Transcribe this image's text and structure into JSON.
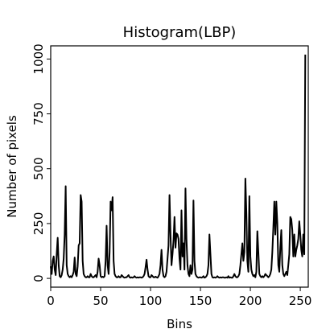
{
  "chart_data": {
    "type": "line",
    "title": "Histogram(LBP)",
    "xlabel": "Bins",
    "ylabel": "Number of pixels",
    "xlim": [
      0,
      258
    ],
    "ylim": [
      -40,
      1060
    ],
    "xticks": [
      0,
      50,
      100,
      150,
      200,
      250
    ],
    "yticks": [
      0,
      250,
      500,
      750,
      1000
    ],
    "xtick_labels": [
      "0",
      "50",
      "100",
      "150",
      "200",
      "250"
    ],
    "ytick_labels": [
      "0",
      "250",
      "500",
      "750",
      "1000"
    ],
    "line_color": "#000000",
    "grid": false,
    "legend": "none",
    "series": [
      {
        "points": [
          [
            0,
            55
          ],
          [
            1,
            20
          ],
          [
            2,
            80
          ],
          [
            3,
            100
          ],
          [
            4,
            40
          ],
          [
            5,
            15
          ],
          [
            6,
            110
          ],
          [
            7,
            185
          ],
          [
            8,
            60
          ],
          [
            9,
            10
          ],
          [
            10,
            5
          ],
          [
            11,
            15
          ],
          [
            12,
            40
          ],
          [
            13,
            90
          ],
          [
            14,
            200
          ],
          [
            15,
            420
          ],
          [
            16,
            60
          ],
          [
            17,
            20
          ],
          [
            18,
            10
          ],
          [
            19,
            5
          ],
          [
            20,
            10
          ],
          [
            21,
            5
          ],
          [
            22,
            15
          ],
          [
            23,
            30
          ],
          [
            24,
            95
          ],
          [
            25,
            20
          ],
          [
            26,
            10
          ],
          [
            27,
            55
          ],
          [
            28,
            150
          ],
          [
            29,
            160
          ],
          [
            30,
            380
          ],
          [
            31,
            350
          ],
          [
            32,
            80
          ],
          [
            33,
            20
          ],
          [
            34,
            10
          ],
          [
            35,
            5
          ],
          [
            36,
            5
          ],
          [
            37,
            10
          ],
          [
            38,
            5
          ],
          [
            39,
            5
          ],
          [
            40,
            20
          ],
          [
            41,
            10
          ],
          [
            42,
            5
          ],
          [
            43,
            5
          ],
          [
            44,
            10
          ],
          [
            45,
            15
          ],
          [
            46,
            5
          ],
          [
            47,
            30
          ],
          [
            48,
            90
          ],
          [
            49,
            60
          ],
          [
            50,
            10
          ],
          [
            51,
            5
          ],
          [
            52,
            8
          ],
          [
            53,
            5
          ],
          [
            54,
            10
          ],
          [
            55,
            80
          ],
          [
            56,
            240
          ],
          [
            57,
            60
          ],
          [
            58,
            20
          ],
          [
            59,
            120
          ],
          [
            60,
            350
          ],
          [
            61,
            310
          ],
          [
            62,
            370
          ],
          [
            63,
            80
          ],
          [
            64,
            20
          ],
          [
            65,
            10
          ],
          [
            66,
            5
          ],
          [
            67,
            5
          ],
          [
            68,
            10
          ],
          [
            69,
            5
          ],
          [
            70,
            5
          ],
          [
            71,
            15
          ],
          [
            72,
            10
          ],
          [
            73,
            5
          ],
          [
            74,
            3
          ],
          [
            75,
            5
          ],
          [
            76,
            5
          ],
          [
            77,
            10
          ],
          [
            78,
            15
          ],
          [
            79,
            5
          ],
          [
            80,
            3
          ],
          [
            81,
            5
          ],
          [
            82,
            3
          ],
          [
            83,
            5
          ],
          [
            84,
            10
          ],
          [
            85,
            5
          ],
          [
            86,
            3
          ],
          [
            87,
            5
          ],
          [
            88,
            3
          ],
          [
            89,
            5
          ],
          [
            90,
            5
          ],
          [
            91,
            3
          ],
          [
            92,
            5
          ],
          [
            93,
            10
          ],
          [
            94,
            20
          ],
          [
            95,
            50
          ],
          [
            96,
            85
          ],
          [
            97,
            40
          ],
          [
            98,
            10
          ],
          [
            99,
            5
          ],
          [
            100,
            5
          ],
          [
            101,
            15
          ],
          [
            102,
            10
          ],
          [
            103,
            5
          ],
          [
            104,
            5
          ],
          [
            105,
            8
          ],
          [
            106,
            5
          ],
          [
            107,
            3
          ],
          [
            108,
            10
          ],
          [
            109,
            20
          ],
          [
            110,
            60
          ],
          [
            111,
            130
          ],
          [
            112,
            40
          ],
          [
            113,
            10
          ],
          [
            114,
            5
          ],
          [
            115,
            10
          ],
          [
            116,
            30
          ],
          [
            117,
            90
          ],
          [
            118,
            150
          ],
          [
            119,
            380
          ],
          [
            120,
            200
          ],
          [
            121,
            60
          ],
          [
            122,
            110
          ],
          [
            123,
            170
          ],
          [
            124,
            280
          ],
          [
            125,
            140
          ],
          [
            126,
            205
          ],
          [
            127,
            200
          ],
          [
            128,
            180
          ],
          [
            129,
            90
          ],
          [
            130,
            40
          ],
          [
            131,
            310
          ],
          [
            132,
            100
          ],
          [
            133,
            160
          ],
          [
            134,
            40
          ],
          [
            135,
            410
          ],
          [
            136,
            180
          ],
          [
            137,
            60
          ],
          [
            138,
            20
          ],
          [
            139,
            10
          ],
          [
            140,
            60
          ],
          [
            141,
            20
          ],
          [
            142,
            40
          ],
          [
            143,
            355
          ],
          [
            144,
            80
          ],
          [
            145,
            20
          ],
          [
            146,
            10
          ],
          [
            147,
            5
          ],
          [
            148,
            3
          ],
          [
            149,
            5
          ],
          [
            150,
            5
          ],
          [
            151,
            3
          ],
          [
            152,
            5
          ],
          [
            153,
            10
          ],
          [
            154,
            3
          ],
          [
            155,
            5
          ],
          [
            156,
            10
          ],
          [
            157,
            20
          ],
          [
            158,
            60
          ],
          [
            159,
            200
          ],
          [
            160,
            110
          ],
          [
            161,
            20
          ],
          [
            162,
            5
          ],
          [
            163,
            3
          ],
          [
            164,
            5
          ],
          [
            165,
            3
          ],
          [
            166,
            5
          ],
          [
            167,
            10
          ],
          [
            168,
            5
          ],
          [
            169,
            3
          ],
          [
            170,
            5
          ],
          [
            171,
            3
          ],
          [
            172,
            5
          ],
          [
            173,
            5
          ],
          [
            174,
            3
          ],
          [
            175,
            3
          ],
          [
            176,
            5
          ],
          [
            177,
            3
          ],
          [
            178,
            10
          ],
          [
            179,
            3
          ],
          [
            180,
            5
          ],
          [
            181,
            3
          ],
          [
            182,
            3
          ],
          [
            183,
            10
          ],
          [
            184,
            20
          ],
          [
            185,
            10
          ],
          [
            186,
            5
          ],
          [
            187,
            5
          ],
          [
            188,
            10
          ],
          [
            189,
            20
          ],
          [
            190,
            60
          ],
          [
            191,
            110
          ],
          [
            192,
            160
          ],
          [
            193,
            80
          ],
          [
            194,
            120
          ],
          [
            195,
            455
          ],
          [
            196,
            300
          ],
          [
            197,
            80
          ],
          [
            198,
            30
          ],
          [
            199,
            375
          ],
          [
            200,
            100
          ],
          [
            201,
            40
          ],
          [
            202,
            20
          ],
          [
            203,
            10
          ],
          [
            204,
            15
          ],
          [
            205,
            5
          ],
          [
            206,
            30
          ],
          [
            207,
            215
          ],
          [
            208,
            120
          ],
          [
            209,
            20
          ],
          [
            210,
            10
          ],
          [
            211,
            5
          ],
          [
            212,
            10
          ],
          [
            213,
            5
          ],
          [
            214,
            10
          ],
          [
            215,
            20
          ],
          [
            216,
            15
          ],
          [
            217,
            10
          ],
          [
            218,
            5
          ],
          [
            219,
            10
          ],
          [
            220,
            20
          ],
          [
            221,
            40
          ],
          [
            222,
            120
          ],
          [
            223,
            230
          ],
          [
            224,
            350
          ],
          [
            225,
            200
          ],
          [
            226,
            350
          ],
          [
            227,
            250
          ],
          [
            228,
            60
          ],
          [
            229,
            30
          ],
          [
            230,
            140
          ],
          [
            231,
            220
          ],
          [
            232,
            60
          ],
          [
            233,
            20
          ],
          [
            234,
            10
          ],
          [
            235,
            20
          ],
          [
            236,
            30
          ],
          [
            237,
            15
          ],
          [
            238,
            60
          ],
          [
            239,
            110
          ],
          [
            240,
            280
          ],
          [
            241,
            270
          ],
          [
            242,
            220
          ],
          [
            243,
            100
          ],
          [
            244,
            200
          ],
          [
            245,
            100
          ],
          [
            246,
            130
          ],
          [
            247,
            150
          ],
          [
            248,
            180
          ],
          [
            249,
            260
          ],
          [
            250,
            200
          ],
          [
            251,
            130
          ],
          [
            252,
            100
          ],
          [
            253,
            200
          ],
          [
            254,
            110
          ],
          [
            255,
            1020
          ]
        ]
      }
    ]
  }
}
